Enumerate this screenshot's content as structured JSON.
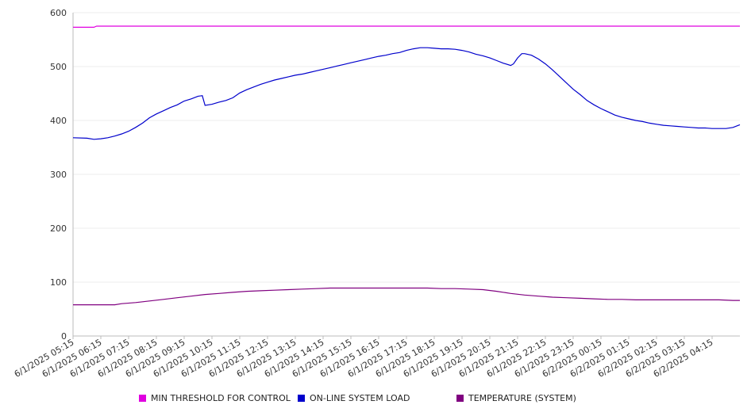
{
  "chart_data": {
    "type": "line",
    "title": "",
    "xlabel": "",
    "ylabel": "",
    "ylim": [
      0,
      600
    ],
    "yticks": [
      0,
      100,
      200,
      300,
      400,
      500,
      600
    ],
    "grid": true,
    "legend_position": "bottom",
    "x_tick_labels": [
      "6/1/2025 05:15",
      "6/1/2025 06:15",
      "6/1/2025 07:15",
      "6/1/2025 08:15",
      "6/1/2025 09:15",
      "6/1/2025 10:15",
      "6/1/2025 11:15",
      "6/1/2025 12:15",
      "6/1/2025 13:15",
      "6/1/2025 14:15",
      "6/1/2025 15:15",
      "6/1/2025 16:15",
      "6/1/2025 17:15",
      "6/1/2025 18:15",
      "6/1/2025 19:15",
      "6/1/2025 20:15",
      "6/1/2025 21:15",
      "6/1/2025 22:15",
      "6/1/2025 23:15",
      "6/2/2025 00:15",
      "6/2/2025 01:15",
      "6/2/2025 02:15",
      "6/2/2025 03:15",
      "6/2/2025 04:15"
    ],
    "x_hours": [
      5.25,
      29.25
    ],
    "series": [
      {
        "name": "MIN THRESHOLD FOR CONTROL",
        "color": "#e000e0",
        "points": [
          [
            5.25,
            573
          ],
          [
            6.0,
            573
          ],
          [
            6.1,
            575
          ],
          [
            29.25,
            575
          ]
        ]
      },
      {
        "name": "ON-LINE SYSTEM LOAD",
        "color": "#0000cc",
        "points": [
          [
            5.25,
            368
          ],
          [
            5.75,
            367
          ],
          [
            6.0,
            365
          ],
          [
            6.25,
            366
          ],
          [
            6.5,
            368
          ],
          [
            6.75,
            371
          ],
          [
            7.0,
            375
          ],
          [
            7.25,
            380
          ],
          [
            7.5,
            387
          ],
          [
            7.75,
            395
          ],
          [
            8.0,
            405
          ],
          [
            8.25,
            412
          ],
          [
            8.5,
            418
          ],
          [
            8.75,
            424
          ],
          [
            9.0,
            429
          ],
          [
            9.25,
            436
          ],
          [
            9.5,
            440
          ],
          [
            9.75,
            445
          ],
          [
            9.9,
            446
          ],
          [
            10.0,
            428
          ],
          [
            10.25,
            430
          ],
          [
            10.5,
            434
          ],
          [
            10.75,
            437
          ],
          [
            11.0,
            442
          ],
          [
            11.25,
            451
          ],
          [
            11.5,
            457
          ],
          [
            11.75,
            462
          ],
          [
            12.0,
            467
          ],
          [
            12.25,
            471
          ],
          [
            12.5,
            475
          ],
          [
            12.75,
            478
          ],
          [
            13.0,
            481
          ],
          [
            13.25,
            484
          ],
          [
            13.5,
            486
          ],
          [
            13.75,
            489
          ],
          [
            14.0,
            492
          ],
          [
            14.25,
            495
          ],
          [
            14.5,
            498
          ],
          [
            14.75,
            501
          ],
          [
            15.0,
            504
          ],
          [
            15.25,
            507
          ],
          [
            15.5,
            510
          ],
          [
            15.75,
            513
          ],
          [
            16.0,
            516
          ],
          [
            16.25,
            519
          ],
          [
            16.5,
            521
          ],
          [
            16.75,
            524
          ],
          [
            17.0,
            526
          ],
          [
            17.25,
            530
          ],
          [
            17.5,
            533
          ],
          [
            17.75,
            535
          ],
          [
            18.0,
            535
          ],
          [
            18.25,
            534
          ],
          [
            18.5,
            533
          ],
          [
            18.75,
            533
          ],
          [
            19.0,
            532
          ],
          [
            19.25,
            530
          ],
          [
            19.5,
            527
          ],
          [
            19.75,
            523
          ],
          [
            20.0,
            520
          ],
          [
            20.25,
            516
          ],
          [
            20.5,
            511
          ],
          [
            20.75,
            506
          ],
          [
            21.0,
            502
          ],
          [
            21.1,
            505
          ],
          [
            21.25,
            516
          ],
          [
            21.4,
            524
          ],
          [
            21.5,
            524
          ],
          [
            21.75,
            521
          ],
          [
            22.0,
            514
          ],
          [
            22.25,
            505
          ],
          [
            22.5,
            494
          ],
          [
            22.75,
            482
          ],
          [
            23.0,
            470
          ],
          [
            23.25,
            458
          ],
          [
            23.5,
            448
          ],
          [
            23.75,
            437
          ],
          [
            24.0,
            429
          ],
          [
            24.25,
            422
          ],
          [
            24.5,
            416
          ],
          [
            24.75,
            410
          ],
          [
            25.0,
            406
          ],
          [
            25.25,
            403
          ],
          [
            25.5,
            400
          ],
          [
            25.75,
            398
          ],
          [
            26.0,
            395
          ],
          [
            26.25,
            393
          ],
          [
            26.5,
            391
          ],
          [
            26.75,
            390
          ],
          [
            27.0,
            389
          ],
          [
            27.25,
            388
          ],
          [
            27.5,
            387
          ],
          [
            27.75,
            386
          ],
          [
            28.0,
            386
          ],
          [
            28.25,
            385
          ],
          [
            28.5,
            385
          ],
          [
            28.75,
            385
          ],
          [
            29.0,
            387
          ],
          [
            29.25,
            392
          ]
        ]
      },
      {
        "name": "TEMPERATURE (SYSTEM)",
        "color": "#800080",
        "points": [
          [
            5.25,
            58
          ],
          [
            6.0,
            58
          ],
          [
            6.75,
            58
          ],
          [
            7.0,
            60
          ],
          [
            7.5,
            62
          ],
          [
            8.0,
            65
          ],
          [
            8.5,
            68
          ],
          [
            9.0,
            71
          ],
          [
            9.5,
            74
          ],
          [
            10.0,
            77
          ],
          [
            10.5,
            79
          ],
          [
            11.0,
            81
          ],
          [
            11.5,
            83
          ],
          [
            12.0,
            84
          ],
          [
            12.5,
            85
          ],
          [
            13.0,
            86
          ],
          [
            13.5,
            87
          ],
          [
            14.0,
            88
          ],
          [
            14.5,
            89
          ],
          [
            15.0,
            89
          ],
          [
            15.5,
            89
          ],
          [
            16.0,
            89
          ],
          [
            16.5,
            89
          ],
          [
            17.0,
            89
          ],
          [
            17.5,
            89
          ],
          [
            18.0,
            89
          ],
          [
            18.5,
            88
          ],
          [
            19.0,
            88
          ],
          [
            19.5,
            87
          ],
          [
            20.0,
            86
          ],
          [
            20.5,
            83
          ],
          [
            21.0,
            79
          ],
          [
            21.5,
            76
          ],
          [
            22.0,
            74
          ],
          [
            22.5,
            72
          ],
          [
            23.0,
            71
          ],
          [
            23.5,
            70
          ],
          [
            24.0,
            69
          ],
          [
            24.5,
            68
          ],
          [
            25.0,
            68
          ],
          [
            25.5,
            67
          ],
          [
            26.0,
            67
          ],
          [
            26.5,
            67
          ],
          [
            27.0,
            67
          ],
          [
            27.5,
            67
          ],
          [
            28.0,
            67
          ],
          [
            28.5,
            67
          ],
          [
            29.0,
            66
          ],
          [
            29.25,
            66
          ]
        ]
      }
    ]
  }
}
